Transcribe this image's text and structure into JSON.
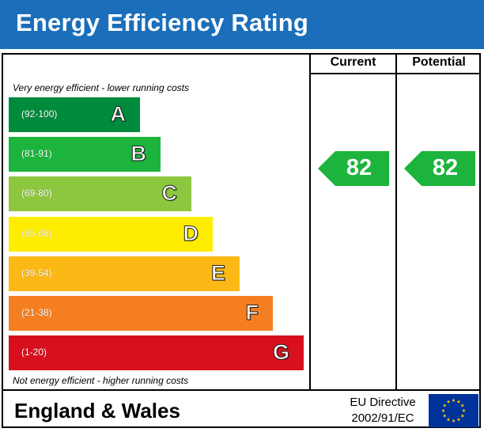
{
  "title": "Energy Efficiency Rating",
  "columns": {
    "current": "Current",
    "potential": "Potential"
  },
  "notes": {
    "top": "Very energy efficient - lower running costs",
    "bottom": "Not energy efficient - higher running costs"
  },
  "chart_data": {
    "type": "bar",
    "categories": [
      "A",
      "B",
      "C",
      "D",
      "E",
      "F",
      "G"
    ],
    "ranges": [
      "(92-100)",
      "(81-91)",
      "(69-80)",
      "(55-68)",
      "(39-54)",
      "(21-38)",
      "(1-20)"
    ],
    "colors": [
      "#008a3c",
      "#1cb43c",
      "#8dc63f",
      "#ffed00",
      "#fcb814",
      "#f57f20",
      "#d8101d"
    ],
    "current": {
      "value": 82,
      "band": "B",
      "color": "#1cb43c"
    },
    "potential": {
      "value": 82,
      "band": "B",
      "color": "#1cb43c"
    }
  },
  "footer": {
    "region": "England & Wales",
    "directive_line1": "EU Directive",
    "directive_line2": "2002/91/EC"
  },
  "colors": {
    "header": "#1b6fba",
    "eu_flag": "#003399",
    "eu_stars": "#ffcc00"
  }
}
